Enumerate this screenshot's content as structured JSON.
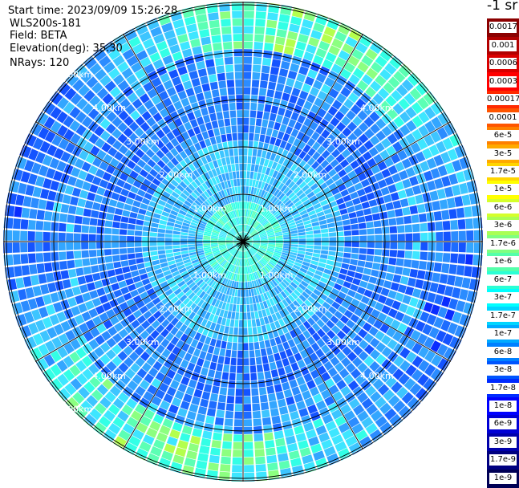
{
  "header": {
    "start_time": "Start time: 2023/09/09 15:26:28",
    "station": "WLS200s-181",
    "field": "Field: BETA",
    "elevation": "Elevation(deg): 35.30",
    "nrays": "NRays: 120"
  },
  "colorbar": {
    "unit": "-1 sr",
    "labels": [
      "0.0017",
      "0.001",
      "0.0006",
      "0.0003",
      "0.00017",
      "0.0001",
      "6e-5",
      "3e-5",
      "1.7e-5",
      "1e-5",
      "6e-6",
      "3e-6",
      "1.7e-6",
      "1e-6",
      "6e-7",
      "3e-7",
      "1.7e-7",
      "1e-7",
      "6e-8",
      "3e-8",
      "1.7e-8",
      "1e-8",
      "6e-9",
      "3e-9",
      "1.7e-9",
      "1e-9"
    ],
    "colors": [
      "#8b0000",
      "#b20000",
      "#d90000",
      "#ff0000",
      "#ff2a00",
      "#ff5500",
      "#ff8000",
      "#ffaa00",
      "#ffd500",
      "#ffff00",
      "#d5ff2b",
      "#aaff55",
      "#80ff80",
      "#55ffaa",
      "#2bffd5",
      "#00ffff",
      "#00d5ff",
      "#00aaff",
      "#0080ff",
      "#0055ff",
      "#002bff",
      "#0000ff",
      "#0000d5",
      "#0000aa",
      "#000080",
      "#000055"
    ]
  },
  "range_labels": [
    "1.00km",
    "2.00km",
    "3.00km",
    "4.00km",
    "5.00km"
  ]
}
